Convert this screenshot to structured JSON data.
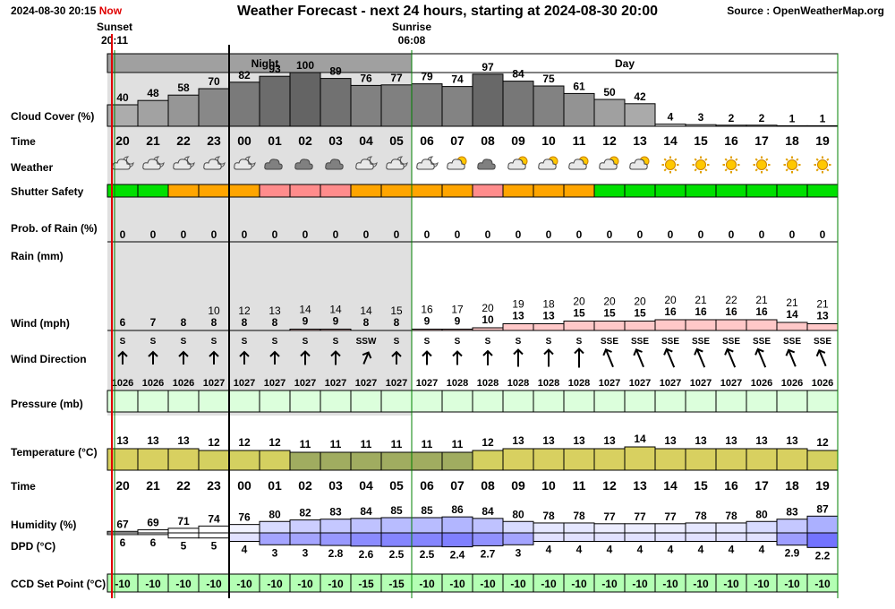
{
  "header": {
    "timestamp": "2024-08-30 20:15",
    "now_label": "Now",
    "title": "Weather Forecast - next 24 hours, starting at 2024-08-30 20:00",
    "source": "Source : OpenWeatherMap.org"
  },
  "sun": {
    "sunset_label": "Sunset",
    "sunset_time": "20:11",
    "sunrise_label": "Sunrise",
    "sunrise_time": "06:08"
  },
  "periods": {
    "night": "Night",
    "day": "Day"
  },
  "row_labels": {
    "cloud": "Cloud Cover (%)",
    "time": "Time",
    "weather": "Weather",
    "shutter": "Shutter Safety",
    "prob_rain": "Prob. of Rain (%)",
    "rain": "Rain (mm)",
    "wind": "Wind (mph)",
    "wind_dir": "Wind Direction",
    "pressure": "Pressure (mb)",
    "temperature": "Temperature (°C)",
    "time2": "Time",
    "humidity": "Humidity (%)",
    "dpd": "DPD (°C)",
    "ccd": "CCD Set Point (°C)"
  },
  "colors": {
    "shutter_safe": "#00e000",
    "shutter_caution": "#ffa500",
    "shutter_unsafe": "#ff8c8c",
    "now_line": "#e00000",
    "sun_line": "#008000",
    "night_shade": "#e0e0e0",
    "pressure_fill": "#dcffdc",
    "ccd_fill": "#b4ffb4",
    "wind_fill": "#ffc8c8"
  },
  "chart_data": {
    "type": "table",
    "hours": [
      "20",
      "21",
      "22",
      "23",
      "00",
      "01",
      "02",
      "03",
      "04",
      "05",
      "06",
      "07",
      "08",
      "09",
      "10",
      "11",
      "12",
      "13",
      "14",
      "15",
      "16",
      "17",
      "18",
      "19"
    ],
    "cloud_cover": [
      40,
      48,
      58,
      70,
      82,
      93,
      100,
      89,
      76,
      77,
      79,
      74,
      97,
      84,
      75,
      61,
      50,
      42,
      4,
      3,
      2,
      2,
      1,
      1
    ],
    "weather_icons": [
      "partly-cloudy-night",
      "partly-cloudy-night",
      "partly-cloudy-night",
      "partly-cloudy-night",
      "partly-cloudy-night",
      "overcast",
      "overcast",
      "overcast",
      "partly-cloudy-night",
      "partly-cloudy-night",
      "partly-cloudy-night",
      "partly-cloudy-day",
      "overcast",
      "partly-cloudy-day",
      "partly-cloudy-day",
      "partly-cloudy-day",
      "partly-cloudy-day",
      "partly-cloudy-day",
      "sun",
      "sun",
      "sun",
      "sun",
      "sun",
      "sun"
    ],
    "shutter_safety": [
      "safe",
      "safe",
      "caution",
      "caution",
      "caution",
      "unsafe",
      "unsafe",
      "unsafe",
      "caution",
      "caution",
      "caution",
      "caution",
      "unsafe",
      "caution",
      "caution",
      "caution",
      "safe",
      "safe",
      "safe",
      "safe",
      "safe",
      "safe",
      "safe",
      "safe"
    ],
    "prob_rain": [
      0,
      0,
      0,
      0,
      0,
      0,
      0,
      0,
      0,
      0,
      0,
      0,
      0,
      0,
      0,
      0,
      0,
      0,
      0,
      0,
      0,
      0,
      0,
      0
    ],
    "rain": [
      0,
      0,
      0,
      0,
      0,
      0,
      0,
      0,
      0,
      0,
      0,
      0,
      0,
      0,
      0,
      0,
      0,
      0,
      0,
      0,
      0,
      0,
      0,
      0
    ],
    "wind_gust": [
      "",
      "",
      "",
      "10",
      "12",
      "13",
      "14",
      "14",
      "14",
      "15",
      "16",
      "17",
      "20",
      "19",
      "18",
      "20",
      "20",
      "20",
      "20",
      "21",
      "22",
      "21",
      "21",
      "21"
    ],
    "wind_speed": [
      6,
      7,
      8,
      8,
      8,
      8,
      9,
      9,
      8,
      8,
      9,
      9,
      10,
      13,
      13,
      15,
      15,
      15,
      16,
      16,
      16,
      16,
      14,
      13
    ],
    "wind_dir": [
      "S",
      "S",
      "S",
      "S",
      "S",
      "S",
      "S",
      "S",
      "SSW",
      "S",
      "S",
      "S",
      "S",
      "S",
      "S",
      "S",
      "SSE",
      "SSE",
      "SSE",
      "SSE",
      "SSE",
      "SSE",
      "SSE",
      "SSE"
    ],
    "wind_deg": [
      180,
      180,
      180,
      180,
      180,
      180,
      180,
      180,
      202.5,
      180,
      180,
      180,
      180,
      180,
      180,
      180,
      157.5,
      157.5,
      157.5,
      157.5,
      157.5,
      157.5,
      157.5,
      157.5
    ],
    "pressure": [
      1026,
      1026,
      1026,
      1027,
      1027,
      1027,
      1027,
      1027,
      1027,
      1027,
      1027,
      1028,
      1028,
      1028,
      1028,
      1028,
      1027,
      1027,
      1027,
      1027,
      1027,
      1026,
      1026,
      1026
    ],
    "temperature": [
      13,
      13,
      13,
      12,
      12,
      12,
      11,
      11,
      11,
      11,
      11,
      11,
      12,
      13,
      13,
      13,
      13,
      14,
      13,
      13,
      13,
      13,
      13,
      12
    ],
    "humidity": [
      67,
      69,
      71,
      74,
      76,
      80,
      82,
      83,
      84,
      85,
      85,
      86,
      84,
      80,
      78,
      78,
      77,
      77,
      77,
      78,
      78,
      80,
      83,
      87
    ],
    "dpd": [
      "6",
      "6",
      "5",
      "5",
      "4",
      "3",
      "3",
      "2.8",
      "2.6",
      "2.5",
      "2.5",
      "2.4",
      "2.7",
      "3",
      "4",
      "4",
      "4",
      "4",
      "4",
      "4",
      "4",
      "4",
      "2.9",
      "2.2"
    ],
    "ccd_set_point": [
      -10,
      -10,
      -10,
      -10,
      -10,
      -10,
      -10,
      -10,
      -15,
      -15,
      -10,
      -10,
      -10,
      -10,
      -10,
      -10,
      -10,
      -10,
      -10,
      -10,
      -10,
      -10,
      -10,
      -10
    ]
  }
}
